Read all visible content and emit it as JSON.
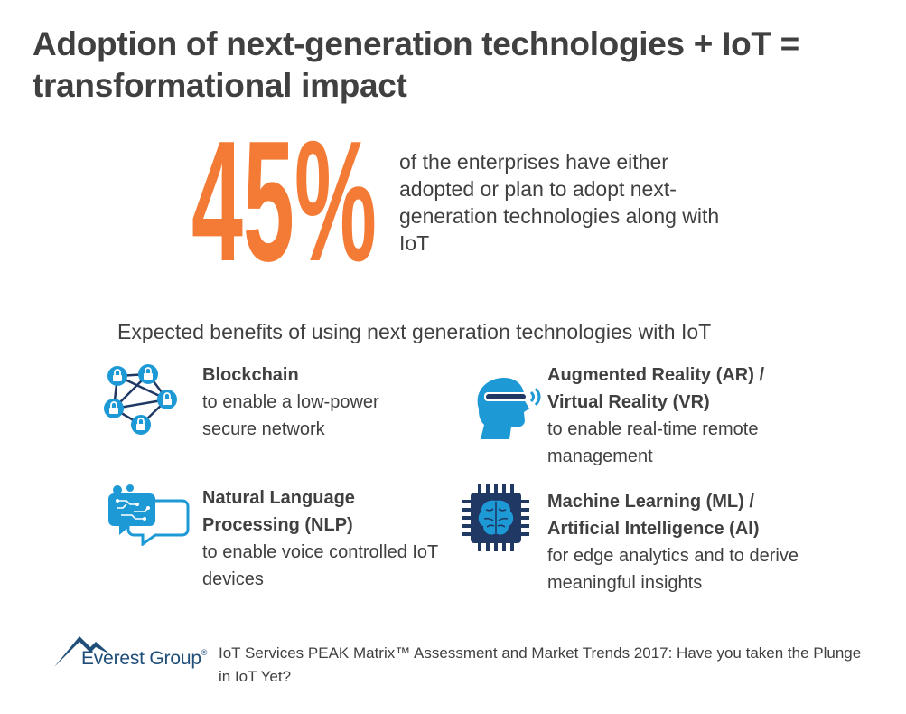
{
  "title": "Adoption of next-generation technologies + IoT = transformational impact",
  "stat": {
    "value": "45%",
    "text": "of the enterprises have either adopted or plan to adopt next-generation technologies along with IoT"
  },
  "section_title": "Expected benefits of using next generation technologies with IoT",
  "benefits": [
    {
      "name": "Blockchain",
      "desc": "to enable a low-power secure network",
      "icon": "blockchain-network-icon"
    },
    {
      "name": "Augmented Reality (AR) / Virtual Reality (VR)",
      "desc": "to enable real-time remote management",
      "icon": "vr-headset-head-icon"
    },
    {
      "name": "Natural Language Processing (NLP)",
      "desc": " to enable voice controlled IoT devices",
      "icon": "speech-bubbles-brain-icon"
    },
    {
      "name": "Machine Learning (ML) / Artificial Intelligence (AI)",
      "desc": " for edge analytics and to derive meaningful insights",
      "icon": "brain-chip-icon"
    }
  ],
  "logo": {
    "text": "Everest Group",
    "reg": "®"
  },
  "footer": "IoT Services PEAK Matrix™ Assessment and Market Trends 2017: Have you taken the Plunge in IoT Yet?",
  "colors": {
    "accent_orange": "#f47b36",
    "icon_blue": "#1d9ad6",
    "icon_navy": "#1f3864",
    "text_gray": "#404040"
  }
}
